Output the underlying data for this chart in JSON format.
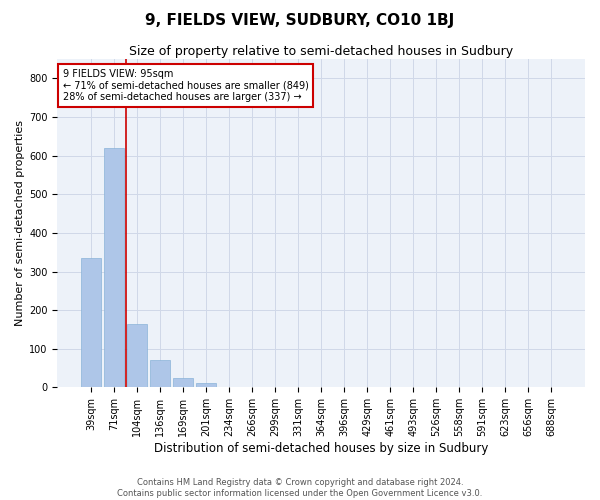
{
  "title": "9, FIELDS VIEW, SUDBURY, CO10 1BJ",
  "subtitle": "Size of property relative to semi-detached houses in Sudbury",
  "xlabel": "Distribution of semi-detached houses by size in Sudbury",
  "ylabel": "Number of semi-detached properties",
  "footnote1": "Contains HM Land Registry data © Crown copyright and database right 2024.",
  "footnote2": "Contains public sector information licensed under the Open Government Licence v3.0.",
  "categories": [
    "39sqm",
    "71sqm",
    "104sqm",
    "136sqm",
    "169sqm",
    "201sqm",
    "234sqm",
    "266sqm",
    "299sqm",
    "331sqm",
    "364sqm",
    "396sqm",
    "429sqm",
    "461sqm",
    "493sqm",
    "526sqm",
    "558sqm",
    "591sqm",
    "623sqm",
    "656sqm",
    "688sqm"
  ],
  "values": [
    335,
    620,
    165,
    70,
    25,
    10,
    2,
    0,
    0,
    0,
    0,
    0,
    0,
    0,
    0,
    0,
    0,
    0,
    0,
    0,
    0
  ],
  "bar_color": "#aec6e8",
  "bar_edge_color": "#8ab4d8",
  "property_line_color": "#cc0000",
  "property_line_x": 1.5,
  "annotation_text": "9 FIELDS VIEW: 95sqm\n← 71% of semi-detached houses are smaller (849)\n28% of semi-detached houses are larger (337) →",
  "annotation_box_color": "white",
  "annotation_box_edge": "#cc0000",
  "ylim": [
    0,
    850
  ],
  "yticks": [
    0,
    100,
    200,
    300,
    400,
    500,
    600,
    700,
    800
  ],
  "grid_color": "#d0d8e8",
  "bg_color": "#edf2f9",
  "title_fontsize": 11,
  "subtitle_fontsize": 9,
  "ylabel_fontsize": 8,
  "xlabel_fontsize": 8.5,
  "tick_fontsize": 7,
  "annot_fontsize": 7,
  "footnote_fontsize": 6
}
